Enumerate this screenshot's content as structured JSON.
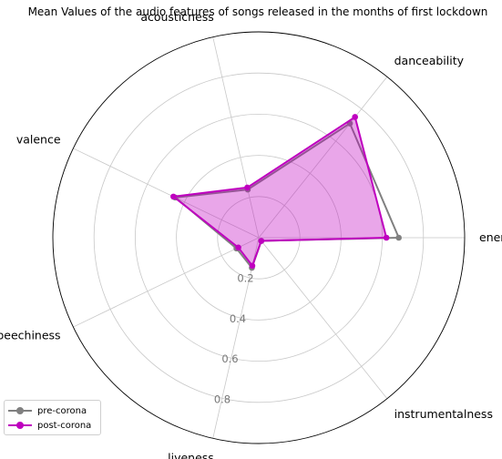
{
  "chart_data": {
    "type": "radar",
    "title": "Mean Values of the audio features of songs released in the months of first lockdown",
    "axes": [
      "energy",
      "danceability",
      "acousticness",
      "valence",
      "speechiness",
      "liveness",
      "instrumentalness"
    ],
    "r_ticks": [
      0.2,
      0.4,
      0.6,
      0.8
    ],
    "r_tick_labels": [
      "0.2",
      "0.4",
      "0.6",
      "0.8"
    ],
    "rlim": [
      0,
      1
    ],
    "grid": true,
    "legend_position": "lower-left",
    "series": [
      {
        "name": "pre-corona",
        "color": "#808080",
        "values": [
          0.68,
          0.71,
          0.24,
          0.45,
          0.12,
          0.15,
          0.02
        ]
      },
      {
        "name": "post-corona",
        "color": "#bf00bf",
        "values": [
          0.62,
          0.75,
          0.25,
          0.46,
          0.11,
          0.14,
          0.02
        ]
      }
    ],
    "fill_color": "#bf00bf"
  }
}
